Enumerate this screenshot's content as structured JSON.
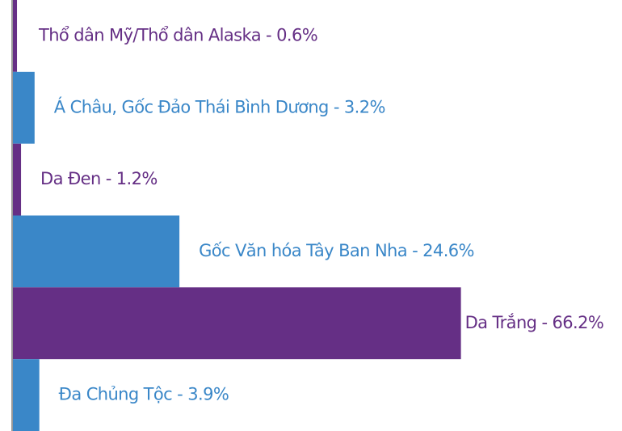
{
  "chart_data": {
    "type": "barh",
    "categories": [
      "Thổ dân Mỹ/Thổ dân Alaska - 0.6%",
      "Á Châu, Gốc Đảo Thái Bình Dương - 3.2%",
      "Da Đen - 1.2%",
      "Gốc Văn hóa Tây Ban Nha - 24.6%",
      "Da Trắng - 66.2%",
      "Đa Chủng Tộc - 3.9%"
    ],
    "values": [
      0.6,
      3.2,
      1.2,
      24.6,
      66.2,
      3.9
    ],
    "colors": [
      "#652f85",
      "#3a87c8",
      "#652f85",
      "#3a87c8",
      "#652f85",
      "#3a87c8"
    ],
    "xlim": [
      0,
      90
    ]
  }
}
